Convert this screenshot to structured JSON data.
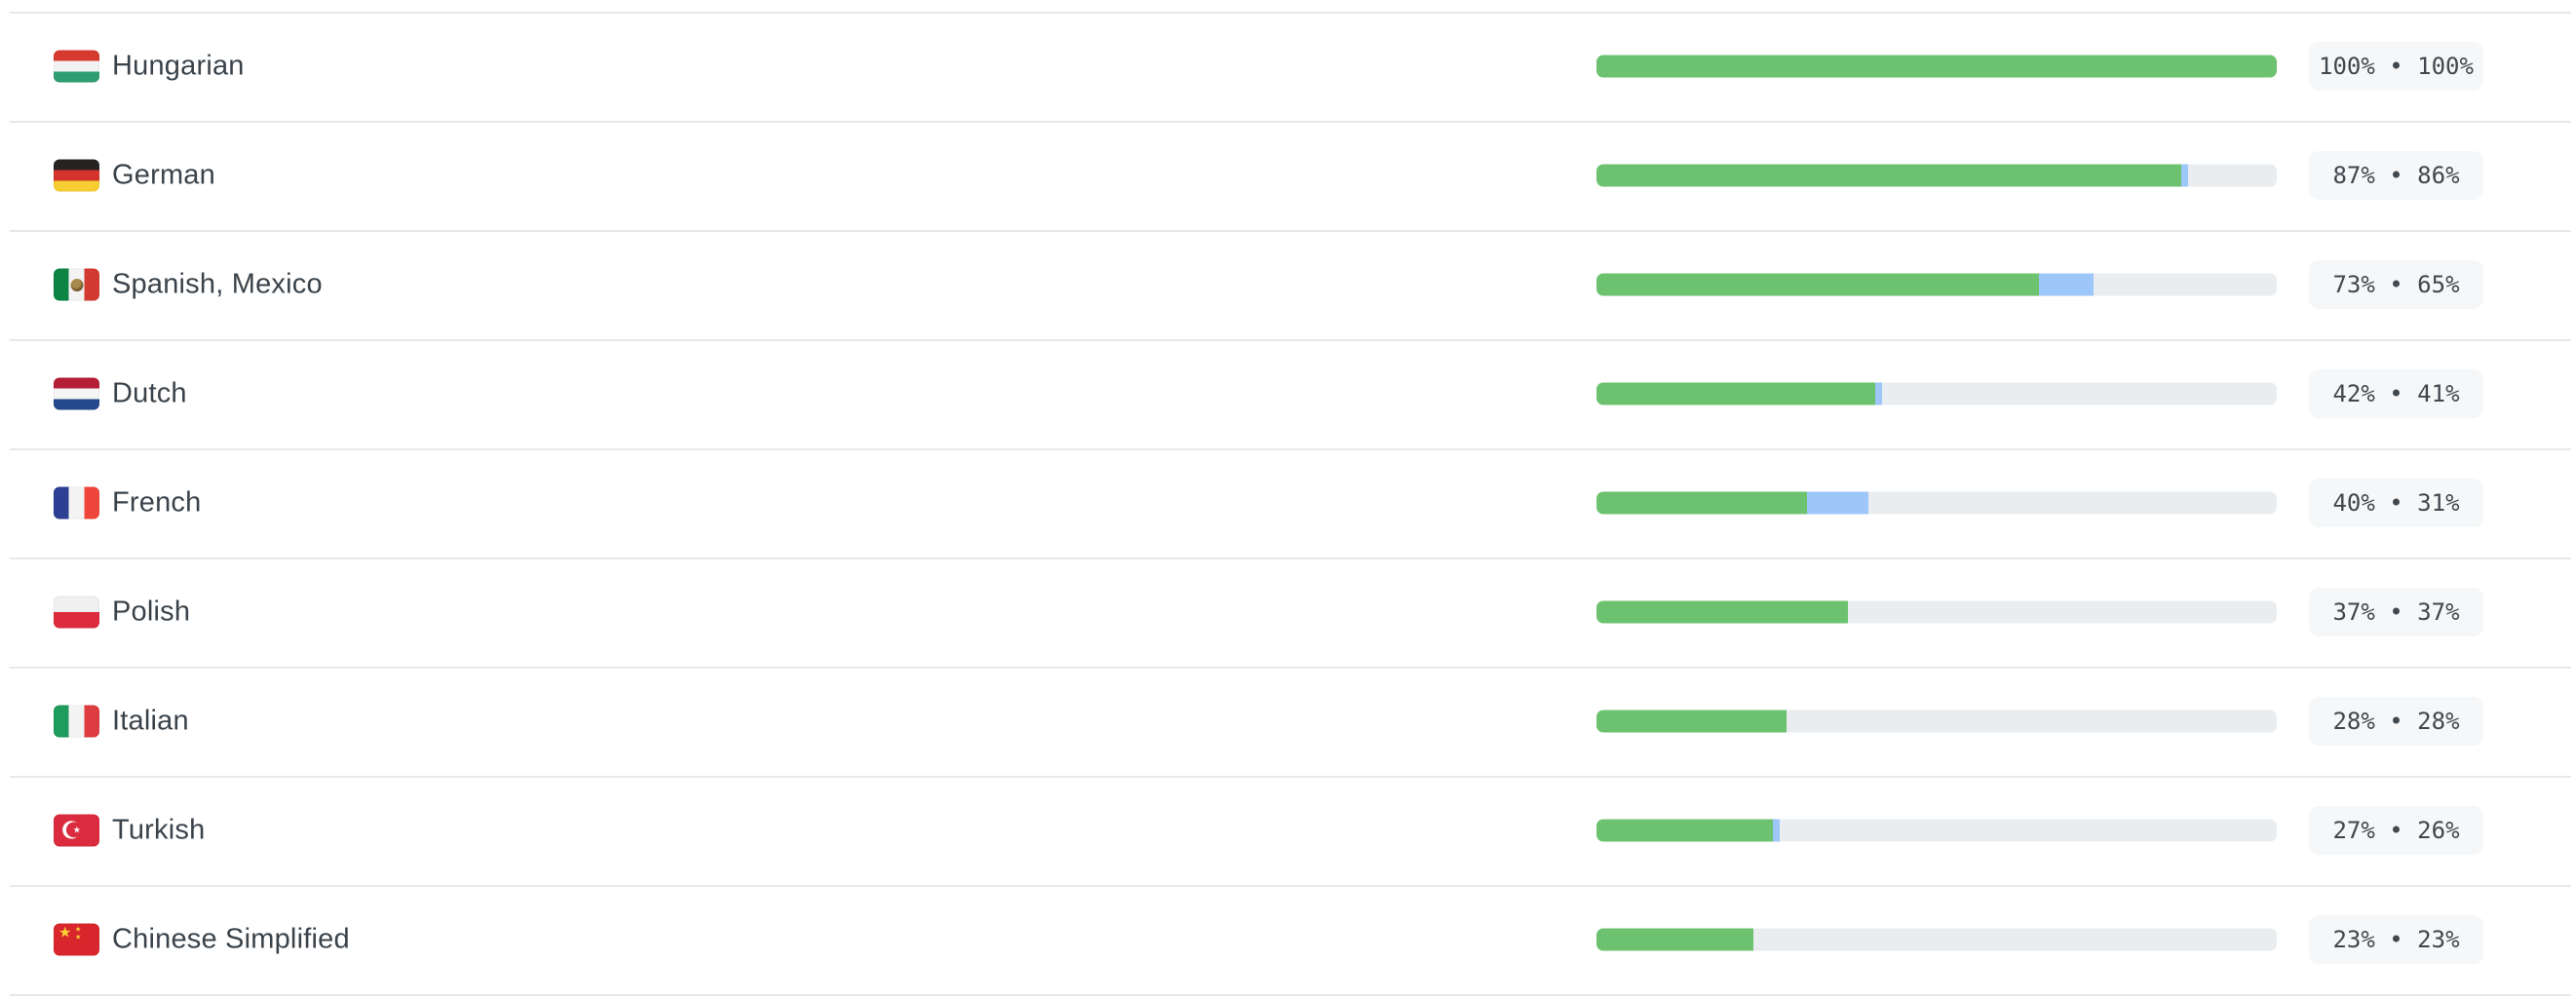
{
  "colors": {
    "bar_translated": "#6cc26e",
    "bar_pending": "#9dc6f9",
    "bar_track": "#e9edf0",
    "badge_background": "#f5f7f8",
    "badge_text": "#40474d",
    "label_text": "#3a434b",
    "divider": "#e8e8e8"
  },
  "list": {
    "rows": [
      {
        "language": "Hungarian",
        "flag": "hu",
        "percent_total": 100,
        "percent_translated": 100,
        "badge": "100% • 100%"
      },
      {
        "language": "German",
        "flag": "de",
        "percent_total": 87,
        "percent_translated": 86,
        "badge": "87% • 86%"
      },
      {
        "language": "Spanish, Mexico",
        "flag": "mx",
        "percent_total": 73,
        "percent_translated": 65,
        "badge": "73% • 65%"
      },
      {
        "language": "Dutch",
        "flag": "nl",
        "percent_total": 42,
        "percent_translated": 41,
        "badge": "42% • 41%"
      },
      {
        "language": "French",
        "flag": "fr",
        "percent_total": 40,
        "percent_translated": 31,
        "badge": "40% • 31%"
      },
      {
        "language": "Polish",
        "flag": "pl",
        "percent_total": 37,
        "percent_translated": 37,
        "badge": "37% • 37%"
      },
      {
        "language": "Italian",
        "flag": "it",
        "percent_total": 28,
        "percent_translated": 28,
        "badge": "28% • 28%"
      },
      {
        "language": "Turkish",
        "flag": "tr",
        "percent_total": 27,
        "percent_translated": 26,
        "badge": "27% • 26%"
      },
      {
        "language": "Chinese Simplified",
        "flag": "cn",
        "percent_total": 23,
        "percent_translated": 23,
        "badge": "23% • 23%"
      }
    ]
  }
}
